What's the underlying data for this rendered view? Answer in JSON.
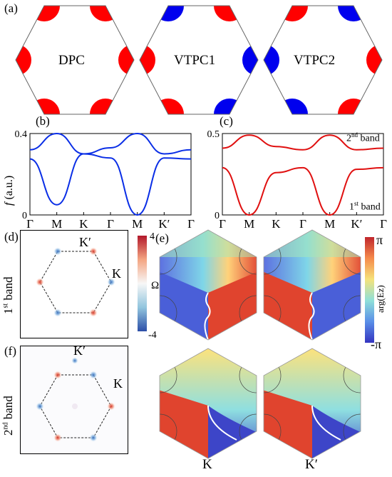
{
  "panel_a": {
    "label": "(a)",
    "hexes": [
      {
        "name": "DPC",
        "corner": "a"
      },
      {
        "name": "VTPC1",
        "corner": "b"
      },
      {
        "name": "VTPC2",
        "corner": ""
      }
    ],
    "colors": {
      "red": "#ff0000",
      "blue": "#0000ee"
    }
  },
  "panel_b": {
    "label": "(b)"
  },
  "panel_c": {
    "label": "(c)",
    "band2": "2",
    "band2_sup": "nd",
    "band2_word": " band",
    "band1": "1",
    "band1_sup": "st",
    "band1_word": " band"
  },
  "freq_label": "f",
  "freq_unit": " (a.u.)",
  "chart_data": [
    {
      "type": "line",
      "title": "",
      "xlabel": "",
      "ylabel": "f (a.u.)",
      "x_ticks": [
        "Γ",
        "M",
        "K",
        "Γ",
        "M",
        "K′",
        "Γ"
      ],
      "y_ticks": [
        "0",
        "0.4"
      ],
      "ylim": [
        0,
        0.4
      ],
      "color": "#0a2ee6",
      "series": [
        {
          "values": [
            0.275,
            0.05,
            0.3,
            0.28,
            0.0,
            0.28,
            0.275
          ]
        },
        {
          "values": [
            0.32,
            0.4,
            0.3,
            0.33,
            0.4,
            0.3,
            0.32
          ]
        }
      ]
    },
    {
      "type": "line",
      "title": "",
      "xlabel": "",
      "ylabel": "",
      "x_ticks": [
        "Γ",
        "M",
        "K",
        "Γ",
        "M",
        "K′",
        "Γ"
      ],
      "y_ticks": [
        "0",
        "0.5"
      ],
      "ylim": [
        0,
        0.5
      ],
      "color": "#e01010",
      "series": [
        {
          "values": [
            0.29,
            0.0,
            0.26,
            0.29,
            0.0,
            0.28,
            0.29
          ]
        },
        {
          "values": [
            0.41,
            0.49,
            0.42,
            0.4,
            0.49,
            0.4,
            0.41
          ]
        }
      ]
    }
  ],
  "panel_d": {
    "label": "(d)",
    "row_label_num": "1",
    "row_label_sup": "st",
    "row_label_word": " band",
    "kprime": "K′",
    "k": "K"
  },
  "panel_f": {
    "label": "(f)",
    "row_label_num": "2",
    "row_label_sup": "nd",
    "row_label_word": " band",
    "kprime": "K′",
    "k": "K"
  },
  "colorbar_omega": {
    "max": "4",
    "min": "-4",
    "symbol": "Ω"
  },
  "panel_e": {
    "label": "(e)",
    "colorbar_max": "π",
    "colorbar_min": "-π",
    "colorbar_title": "arg(Ez)",
    "bottom_left": "K",
    "bottom_right": "K′"
  }
}
